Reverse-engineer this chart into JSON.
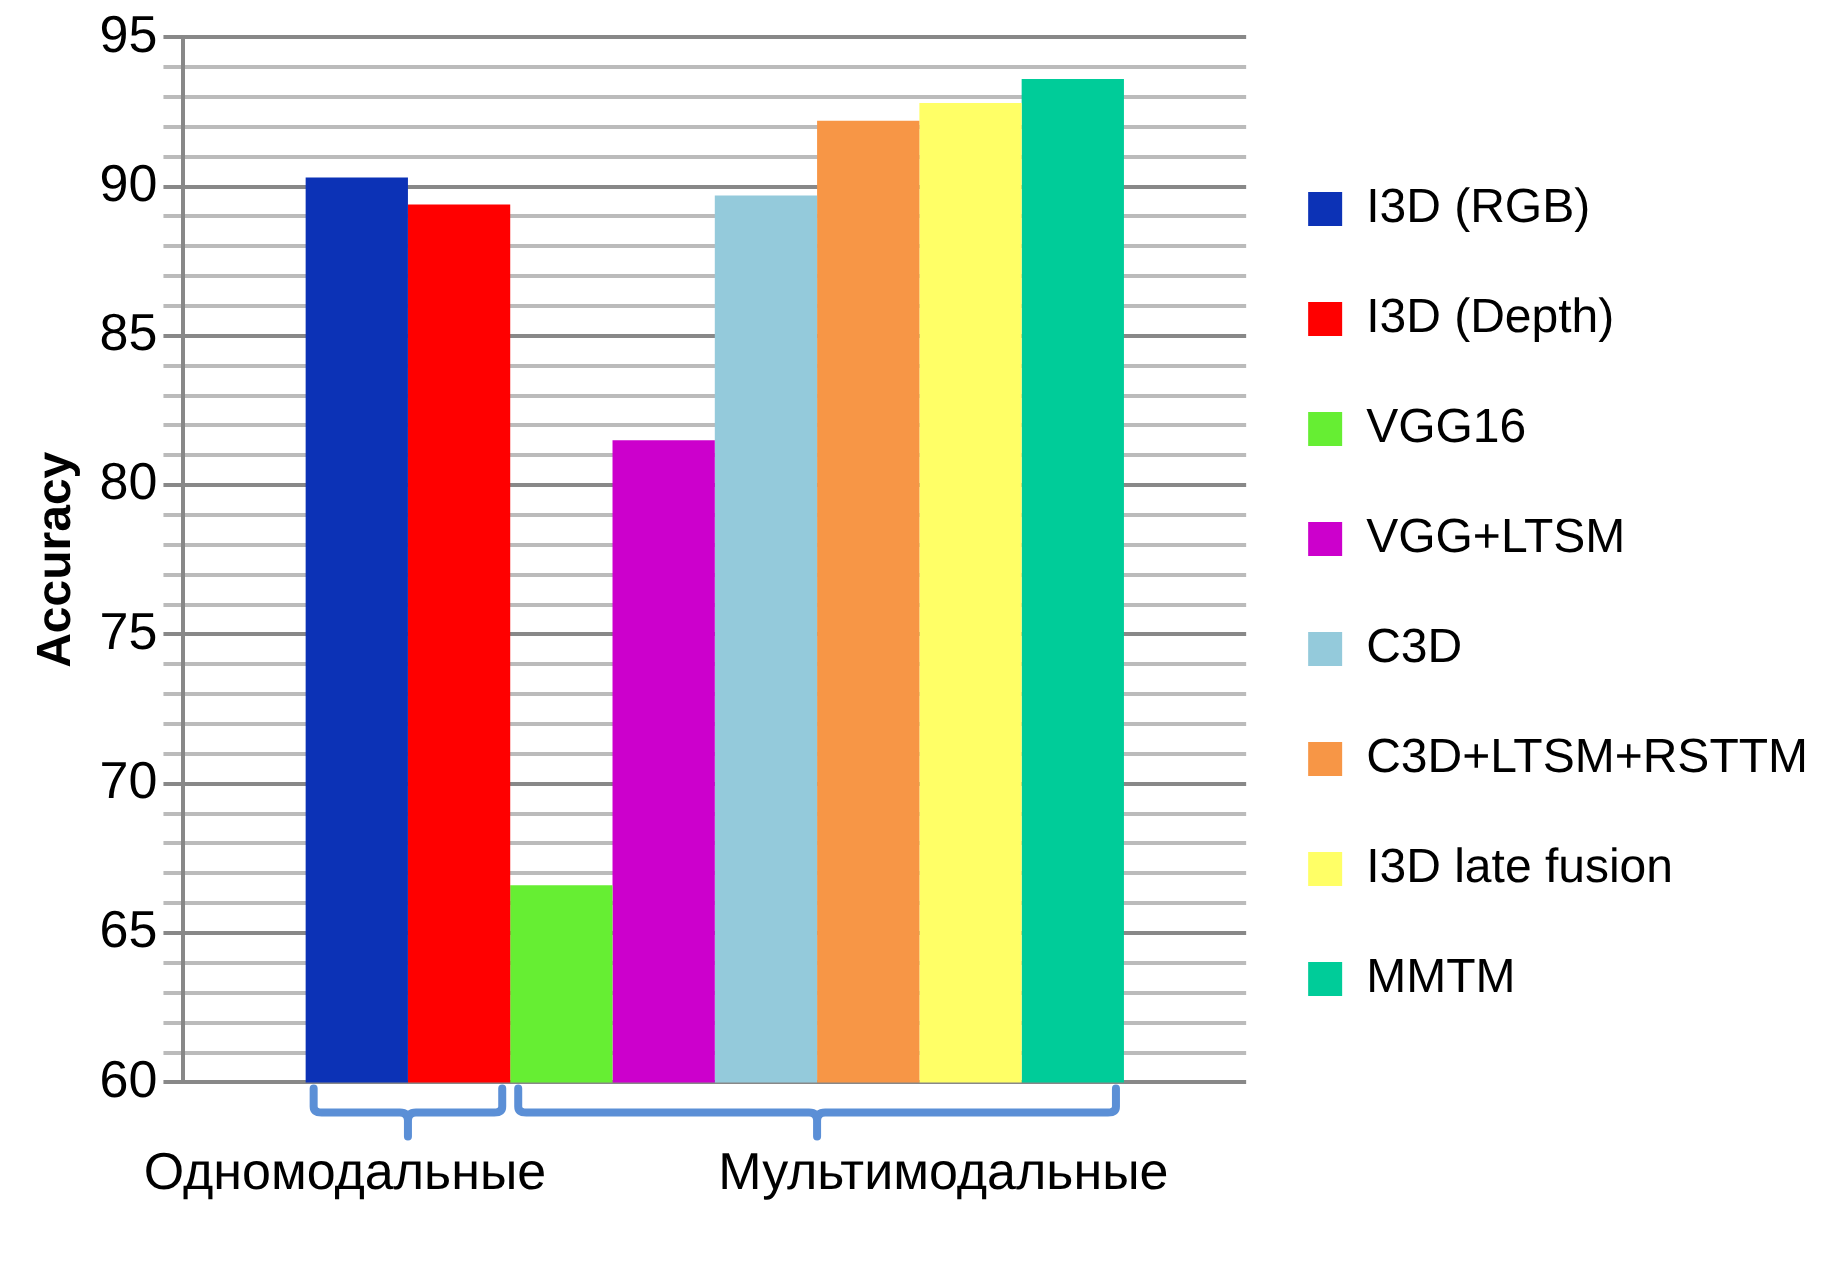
{
  "chart_data": {
    "type": "bar",
    "ylabel": "Accuracy",
    "categories": [
      null
    ],
    "series": [
      {
        "name": "I3D (RGB)",
        "color": "#0c32b6",
        "values": [
          90.3
        ]
      },
      {
        "name": "I3D (Depth)",
        "color": "#ff0000",
        "values": [
          89.4
        ]
      },
      {
        "name": "VGG16",
        "color": "#66ee33",
        "values": [
          66.6
        ]
      },
      {
        "name": "VGG+LTSM",
        "color": "#cc00cc",
        "values": [
          81.5
        ]
      },
      {
        "name": "C3D",
        "color": "#94cadb",
        "values": [
          89.7
        ]
      },
      {
        "name": "C3D+LTSM+RSTTM",
        "color": "#f79646",
        "values": [
          92.2
        ]
      },
      {
        "name": "I3D late fusion",
        "color": "#ffff66",
        "values": [
          92.8
        ]
      },
      {
        "name": "MMTM",
        "color": "#00cc99",
        "values": [
          93.6
        ]
      }
    ],
    "ylim": [
      60,
      95
    ],
    "yticks": [
      60,
      {
        "value": 61,
        "label": null
      },
      {
        "value": 62,
        "label": null
      },
      {
        "value": 63,
        "label": null
      },
      {
        "value": 64,
        "label": null
      },
      65,
      {
        "value": 66,
        "label": null
      },
      {
        "value": 67,
        "label": null
      },
      {
        "value": 68,
        "label": null
      },
      {
        "value": 69,
        "label": null
      },
      70,
      {
        "value": 71,
        "label": null
      },
      {
        "value": 72,
        "label": null
      },
      {
        "value": 73,
        "label": null
      },
      {
        "value": 74,
        "label": null
      },
      75,
      {
        "value": 76,
        "label": null
      },
      {
        "value": 77,
        "label": null
      },
      {
        "value": 78,
        "label": null
      },
      {
        "value": 79,
        "label": null
      },
      80,
      {
        "value": 81,
        "label": null
      },
      {
        "value": 82,
        "label": null
      },
      {
        "value": 83,
        "label": null
      },
      {
        "value": 84,
        "label": null
      },
      85,
      {
        "value": 86,
        "label": null
      },
      {
        "value": 87,
        "label": null
      },
      {
        "value": 88,
        "label": null
      },
      {
        "value": 89,
        "label": null
      },
      90,
      {
        "value": 91,
        "label": null
      },
      {
        "value": 92,
        "label": null
      },
      {
        "value": 93,
        "label": null
      },
      {
        "value": 94,
        "label": null
      },
      95
    ],
    "grid": "y",
    "legend": "right",
    "annotations": [
      "Одномодальные",
      "Мультимодальные"
    ]
  }
}
